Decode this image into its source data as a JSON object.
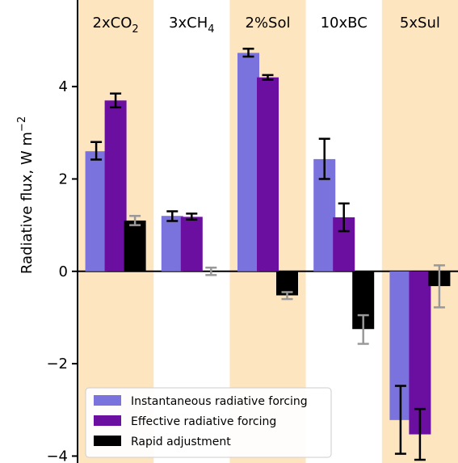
{
  "chart_data": {
    "type": "bar",
    "categories": [
      "2xCO2",
      "3xCH4",
      "2%Sol",
      "10xBC",
      "5xSul"
    ],
    "category_labels": [
      {
        "main": "2xCO",
        "sub": "2",
        "suffix": ""
      },
      {
        "main": "3xCH",
        "sub": "4",
        "suffix": ""
      },
      {
        "main": "2%Sol",
        "sub": "",
        "suffix": ""
      },
      {
        "main": "10xBC",
        "sub": "",
        "suffix": ""
      },
      {
        "main": "5xSul",
        "sub": "",
        "suffix": ""
      }
    ],
    "shaded_categories": [
      true,
      false,
      true,
      false,
      true
    ],
    "shade_color": "#fde5c0",
    "ylabel": {
      "main": "Radiative flux, W m",
      "sup": "−2"
    },
    "ylim": [
      -4.15,
      5.7
    ],
    "yticks": [
      -4,
      -2,
      0,
      2,
      4
    ],
    "ytick_labels": [
      "−4",
      "−2",
      "0",
      "2",
      "4"
    ],
    "series": [
      {
        "name": "Instantaneous radiative forcing",
        "color": "#7b73dd",
        "values": [
          2.6,
          1.2,
          4.73,
          2.43,
          -3.22
        ],
        "err_low": [
          2.42,
          1.09,
          4.65,
          2.0,
          -3.95
        ],
        "err_high": [
          2.8,
          1.3,
          4.82,
          2.87,
          -2.48
        ],
        "err_color": "#000000"
      },
      {
        "name": "Effective radiative forcing",
        "color": "#6a0fa0",
        "values": [
          3.7,
          1.18,
          4.2,
          1.17,
          -3.53
        ],
        "err_low": [
          3.55,
          1.12,
          4.15,
          0.87,
          -4.08
        ],
        "err_high": [
          3.85,
          1.25,
          4.25,
          1.47,
          -2.98
        ],
        "err_color": "#000000"
      },
      {
        "name": "Rapid adjustment",
        "color": "#000000",
        "values": [
          1.1,
          0.0,
          -0.52,
          -1.25,
          -0.32
        ],
        "err_low": [
          1.0,
          -0.08,
          -0.6,
          -1.57,
          -0.78
        ],
        "err_high": [
          1.2,
          0.08,
          -0.45,
          -0.95,
          0.13
        ],
        "err_color": "#999999"
      }
    ],
    "legend_position": "lower-left",
    "grid": false
  }
}
